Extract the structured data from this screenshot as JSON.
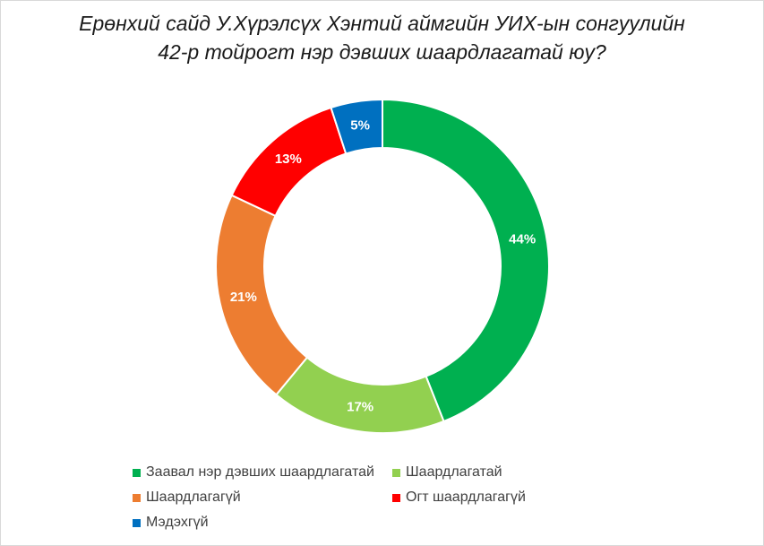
{
  "chart_data": {
    "type": "pie",
    "variant": "donut",
    "title_line1": "Ерөнхий сайд У.Хүрэлсүх Хэнтий аймгийн УИХ-ын сонгуулийн",
    "title_line2": "42-р тойрогт нэр дэвших шаардлагатай юу?",
    "slices": [
      {
        "label": "Заавал нэр дэвших шаардлагатай",
        "value": 44,
        "display": "44%",
        "color": "#00b050"
      },
      {
        "label": "Шаардлагатай",
        "value": 17,
        "display": "17%",
        "color": "#92d050"
      },
      {
        "label": "Шаардлагагүй",
        "value": 21,
        "display": "21%",
        "color": "#ed7d31"
      },
      {
        "label": "Огт шаардлагагүй",
        "value": 13,
        "display": "13%",
        "color": "#ff0000"
      },
      {
        "label": "Мэдэхгүй",
        "value": 5,
        "display": "5%",
        "color": "#0070c0"
      }
    ],
    "start": "top",
    "direction": "clockwise",
    "legend_position": "bottom"
  }
}
